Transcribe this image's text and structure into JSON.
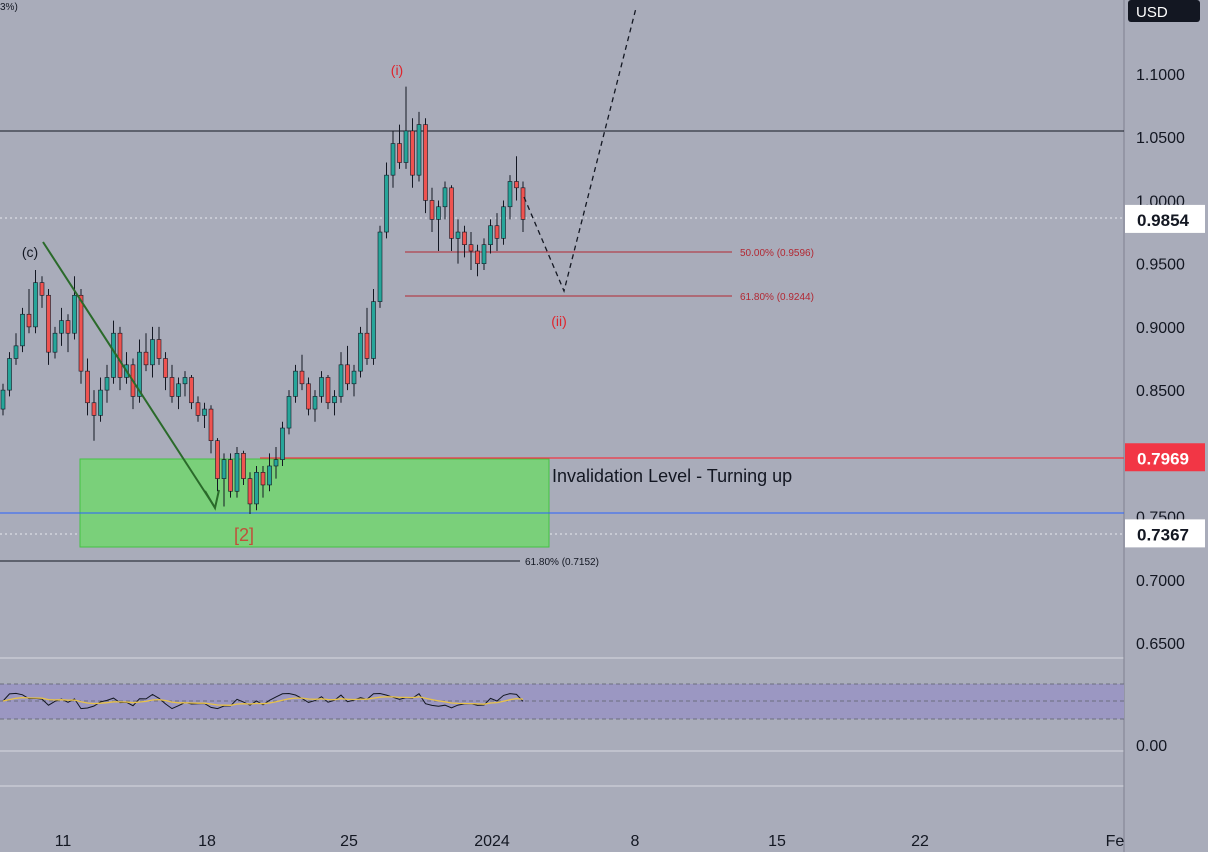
{
  "header": {
    "corner_text": "3%)"
  },
  "price_scale": {
    "currency": "USD",
    "ticks": [
      "1.1000",
      "1.0500",
      "1.0000",
      "0.9500",
      "0.9000",
      "0.8500",
      "0.7500",
      "0.7000",
      "0.6500"
    ],
    "tick_values": [
      1.1,
      1.05,
      1.0,
      0.95,
      0.9,
      0.85,
      0.75,
      0.7,
      0.65
    ]
  },
  "price_badges": [
    {
      "text": "0.9854",
      "value": 0.9854,
      "bg": "#ffffff",
      "color": "#131722"
    },
    {
      "text": "0.7969",
      "value": 0.7969,
      "bg": "#f23645",
      "color": "#ffffff"
    },
    {
      "text": "0.7367",
      "value": 0.7367,
      "bg": "#ffffff",
      "color": "#131722"
    }
  ],
  "time_axis": {
    "labels": [
      "11",
      "18",
      "25",
      "2024",
      "8",
      "15",
      "22",
      "Fe"
    ]
  },
  "oscillator": {
    "axis_label": "0.00"
  },
  "annotations": {
    "wave_i": "(i)",
    "wave_ii": "(ii)",
    "wave_c": "(c)",
    "wave_2": "[2]",
    "invalidation": "Invalidation Level - Turning up",
    "fib_50": "50.00% (0.9596)",
    "fib_618_upper": "61.80% (0.9244)",
    "fib_618_lower": "61.80% (0.7152)"
  },
  "colors": {
    "background": "#a9acba",
    "bull": "#26a69a",
    "bear": "#ef5350",
    "wick": "#131722",
    "fib": "#b22833",
    "wave_label": "#e0242c",
    "arrow": "#2a6a2a",
    "zone": "#7ad07a",
    "invalidation_line": "#f23645",
    "blue_line": "#2962ff",
    "osc_band": "#9b97c2",
    "osc_signal": "#e8c24a"
  },
  "chart_data": {
    "type": "candlestick",
    "x": [
      "11",
      "18",
      "25",
      "2024",
      "8",
      "15",
      "22"
    ],
    "ylim": [
      0.62,
      1.12
    ],
    "candles": [
      [
        0.835,
        0.855,
        0.83,
        0.85
      ],
      [
        0.85,
        0.88,
        0.845,
        0.875
      ],
      [
        0.875,
        0.895,
        0.87,
        0.885
      ],
      [
        0.885,
        0.915,
        0.88,
        0.91
      ],
      [
        0.91,
        0.93,
        0.895,
        0.9
      ],
      [
        0.9,
        0.945,
        0.895,
        0.935
      ],
      [
        0.935,
        0.94,
        0.915,
        0.925
      ],
      [
        0.925,
        0.93,
        0.87,
        0.88
      ],
      [
        0.88,
        0.9,
        0.875,
        0.895
      ],
      [
        0.895,
        0.915,
        0.885,
        0.905
      ],
      [
        0.905,
        0.91,
        0.88,
        0.895
      ],
      [
        0.895,
        0.94,
        0.89,
        0.925
      ],
      [
        0.925,
        0.93,
        0.855,
        0.865
      ],
      [
        0.865,
        0.875,
        0.83,
        0.84
      ],
      [
        0.84,
        0.85,
        0.81,
        0.83
      ],
      [
        0.83,
        0.86,
        0.825,
        0.85
      ],
      [
        0.85,
        0.87,
        0.84,
        0.86
      ],
      [
        0.86,
        0.905,
        0.855,
        0.895
      ],
      [
        0.895,
        0.9,
        0.85,
        0.86
      ],
      [
        0.86,
        0.88,
        0.855,
        0.87
      ],
      [
        0.87,
        0.875,
        0.835,
        0.845
      ],
      [
        0.845,
        0.89,
        0.84,
        0.88
      ],
      [
        0.88,
        0.895,
        0.865,
        0.87
      ],
      [
        0.87,
        0.9,
        0.86,
        0.89
      ],
      [
        0.89,
        0.9,
        0.87,
        0.875
      ],
      [
        0.875,
        0.88,
        0.85,
        0.86
      ],
      [
        0.86,
        0.87,
        0.84,
        0.845
      ],
      [
        0.845,
        0.86,
        0.835,
        0.855
      ],
      [
        0.855,
        0.865,
        0.845,
        0.86
      ],
      [
        0.86,
        0.862,
        0.835,
        0.84
      ],
      [
        0.84,
        0.845,
        0.825,
        0.83
      ],
      [
        0.83,
        0.84,
        0.82,
        0.835
      ],
      [
        0.835,
        0.838,
        0.8,
        0.81
      ],
      [
        0.81,
        0.812,
        0.77,
        0.78
      ],
      [
        0.78,
        0.8,
        0.758,
        0.795
      ],
      [
        0.795,
        0.8,
        0.765,
        0.77
      ],
      [
        0.77,
        0.805,
        0.765,
        0.8
      ],
      [
        0.8,
        0.802,
        0.775,
        0.78
      ],
      [
        0.78,
        0.785,
        0.752,
        0.76
      ],
      [
        0.76,
        0.79,
        0.755,
        0.785
      ],
      [
        0.785,
        0.79,
        0.765,
        0.775
      ],
      [
        0.775,
        0.8,
        0.77,
        0.79
      ],
      [
        0.79,
        0.805,
        0.78,
        0.795
      ],
      [
        0.795,
        0.825,
        0.79,
        0.82
      ],
      [
        0.82,
        0.85,
        0.815,
        0.845
      ],
      [
        0.845,
        0.87,
        0.84,
        0.865
      ],
      [
        0.865,
        0.878,
        0.85,
        0.855
      ],
      [
        0.855,
        0.86,
        0.83,
        0.835
      ],
      [
        0.835,
        0.85,
        0.825,
        0.845
      ],
      [
        0.845,
        0.865,
        0.84,
        0.86
      ],
      [
        0.86,
        0.862,
        0.835,
        0.84
      ],
      [
        0.84,
        0.85,
        0.83,
        0.845
      ],
      [
        0.845,
        0.88,
        0.84,
        0.87
      ],
      [
        0.87,
        0.885,
        0.85,
        0.855
      ],
      [
        0.855,
        0.87,
        0.845,
        0.865
      ],
      [
        0.865,
        0.9,
        0.86,
        0.895
      ],
      [
        0.895,
        0.915,
        0.87,
        0.875
      ],
      [
        0.875,
        0.93,
        0.87,
        0.92
      ],
      [
        0.92,
        0.98,
        0.915,
        0.975
      ],
      [
        0.975,
        1.03,
        0.97,
        1.02
      ],
      [
        1.02,
        1.055,
        1.01,
        1.045
      ],
      [
        1.045,
        1.06,
        1.025,
        1.03
      ],
      [
        1.03,
        1.09,
        1.025,
        1.055
      ],
      [
        1.055,
        1.065,
        1.01,
        1.02
      ],
      [
        1.02,
        1.07,
        1.015,
        1.06
      ],
      [
        1.06,
        1.065,
        0.99,
        1.0
      ],
      [
        1.0,
        1.01,
        0.975,
        0.985
      ],
      [
        0.985,
        1.0,
        0.96,
        0.995
      ],
      [
        0.995,
        1.015,
        0.985,
        1.01
      ],
      [
        1.01,
        1.012,
        0.96,
        0.97
      ],
      [
        0.97,
        0.985,
        0.95,
        0.975
      ],
      [
        0.975,
        0.98,
        0.955,
        0.965
      ],
      [
        0.965,
        0.975,
        0.945,
        0.96
      ],
      [
        0.96,
        0.965,
        0.94,
        0.95
      ],
      [
        0.95,
        0.97,
        0.945,
        0.965
      ],
      [
        0.965,
        0.985,
        0.958,
        0.98
      ],
      [
        0.98,
        0.99,
        0.96,
        0.97
      ],
      [
        0.97,
        1.0,
        0.965,
        0.995
      ],
      [
        0.995,
        1.02,
        0.985,
        1.015
      ],
      [
        1.015,
        1.035,
        1.0,
        1.01
      ],
      [
        1.01,
        1.015,
        0.975,
        0.985
      ]
    ],
    "levels": [
      {
        "name": "horizontal line",
        "value": 1.0557
      },
      {
        "name": "fib 50%",
        "value": 0.9596
      },
      {
        "name": "fib 61.8% upper",
        "value": 0.9244
      },
      {
        "name": "invalidation",
        "value": 0.7969
      },
      {
        "name": "blue line",
        "value": 0.7535
      },
      {
        "name": "fib 61.8% lower",
        "value": 0.7152
      }
    ],
    "zone": {
      "top": 0.7969,
      "bottom": 0.7262
    },
    "projection": [
      0.9854,
      0.9244,
      1.135
    ]
  }
}
